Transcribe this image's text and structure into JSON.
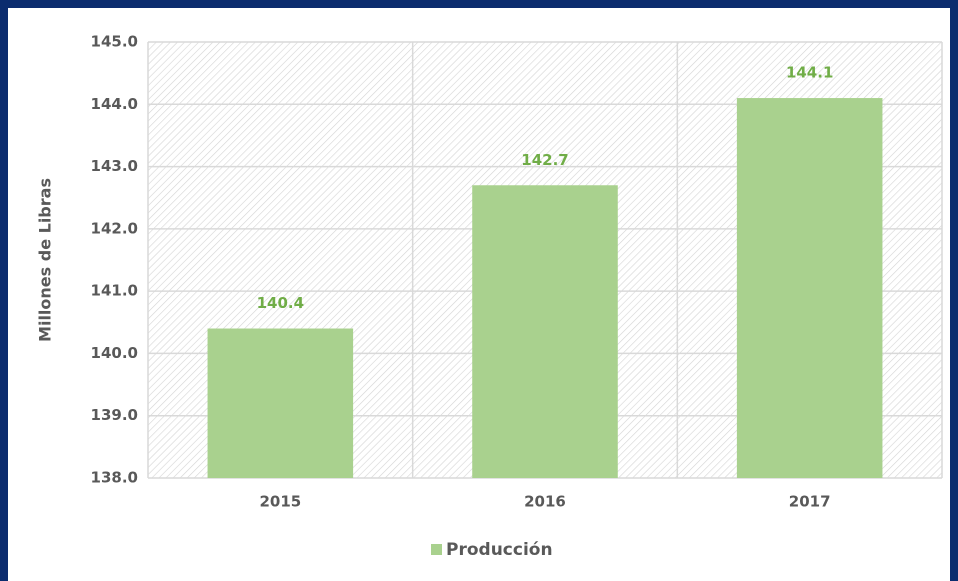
{
  "chart_data": {
    "type": "bar",
    "y_label": "Millones de Libras",
    "categories": [
      "2015",
      "2016",
      "2017"
    ],
    "series": [
      {
        "name": "Producción",
        "color": "#a9d18e",
        "values": [
          140.4,
          142.7,
          144.1
        ],
        "value_labels": [
          "140.4",
          "142.7",
          "144.1"
        ],
        "label_color": "#70ad47"
      }
    ],
    "ylim": [
      138,
      145
    ],
    "yticks": [
      {
        "value": 138,
        "label": "138.0"
      },
      {
        "value": 139,
        "label": "139.0"
      },
      {
        "value": 140,
        "label": "140.0"
      },
      {
        "value": 141,
        "label": "141.0"
      },
      {
        "value": 142,
        "label": "142.0"
      },
      {
        "value": 143,
        "label": "143.0"
      },
      {
        "value": 144,
        "label": "144.0"
      },
      {
        "value": 145,
        "label": "145.0"
      }
    ],
    "grid": true,
    "legend": "bottom"
  }
}
